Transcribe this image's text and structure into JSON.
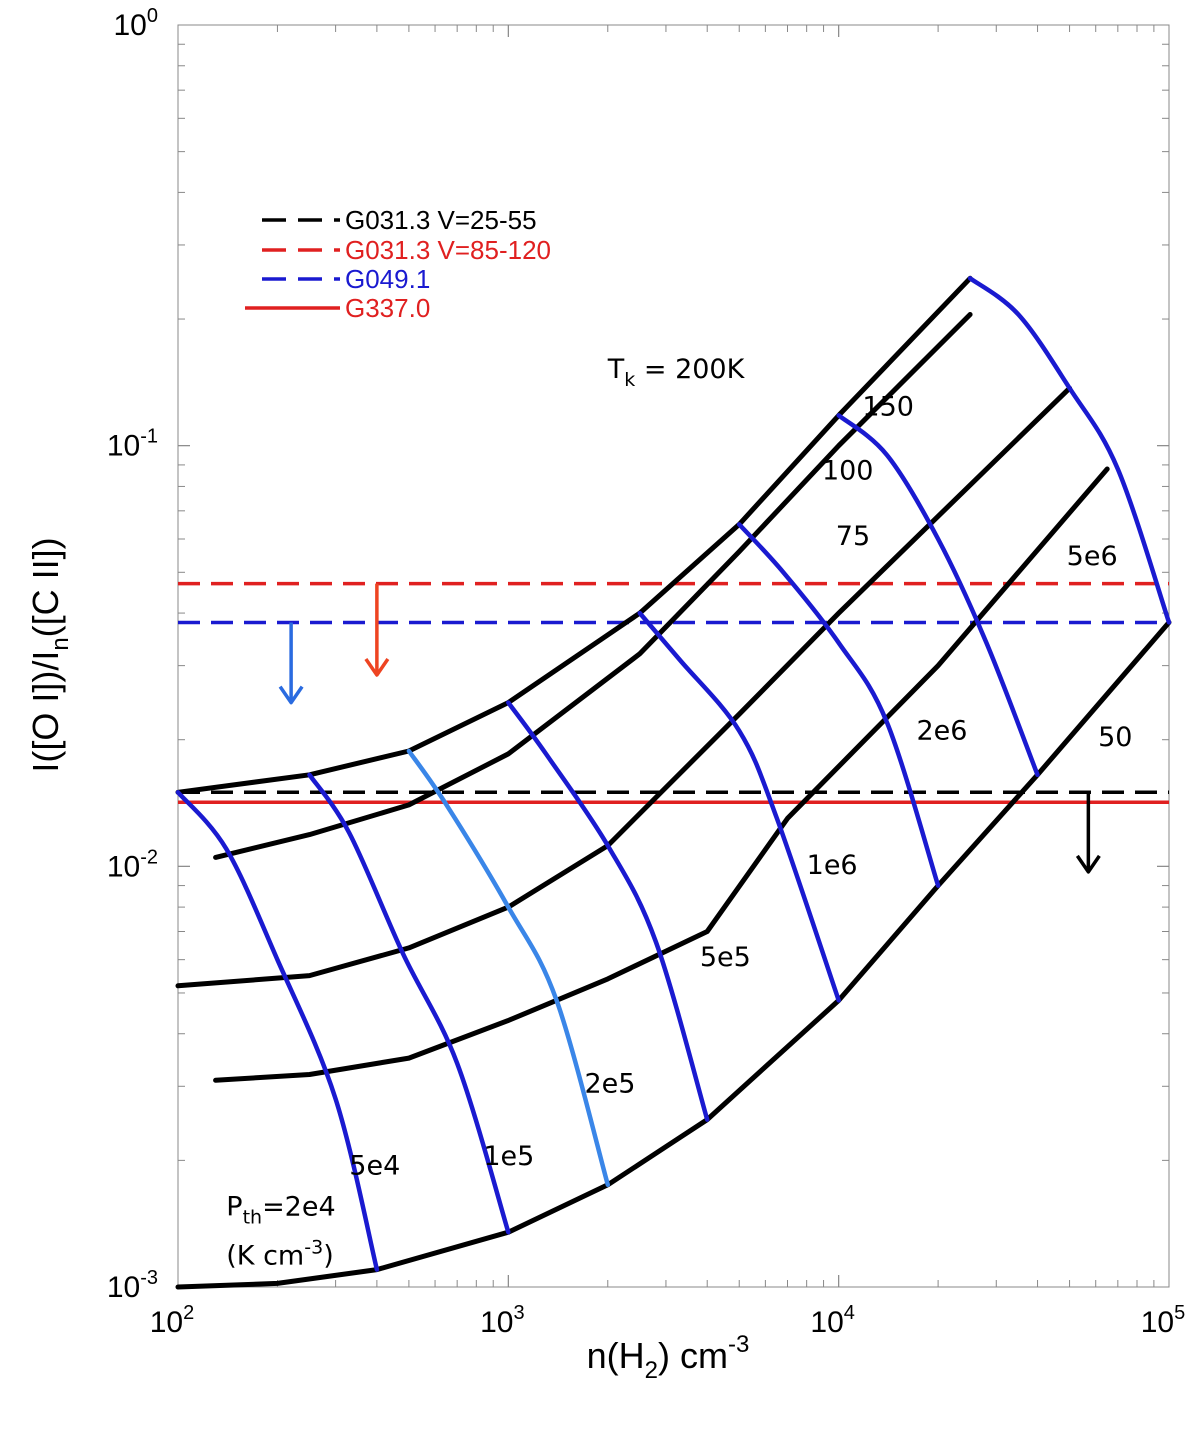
{
  "chart_data": {
    "type": "line",
    "x_scale": "log",
    "y_scale": "log",
    "xlim": [
      100,
      100000
    ],
    "ylim": [
      0.001,
      1
    ],
    "xlabel_parts": [
      "n(H",
      "2",
      ") cm",
      "-3"
    ],
    "ylabel_parts": [
      "I([O I])/I",
      "n",
      "([C II])"
    ],
    "x_ticks": [
      {
        "value": 100,
        "base": "10",
        "exp": "2"
      },
      {
        "value": 1000,
        "base": "10",
        "exp": "3"
      },
      {
        "value": 10000,
        "base": "10",
        "exp": "4"
      },
      {
        "value": 100000,
        "base": "10",
        "exp": "5"
      }
    ],
    "y_ticks": [
      {
        "value": 0.001,
        "base": "10",
        "exp": "-3"
      },
      {
        "value": 0.01,
        "base": "10",
        "exp": "-2"
      },
      {
        "value": 0.1,
        "base": "10",
        "exp": "-1"
      },
      {
        "value": 1,
        "base": "10",
        "exp": "0"
      }
    ],
    "temperature_curves": [
      {
        "label": "200",
        "points": [
          [
            100,
            0.015
          ],
          [
            250,
            0.0165
          ],
          [
            500,
            0.0188
          ],
          [
            1000,
            0.0245
          ],
          [
            2500,
            0.04
          ],
          [
            5000,
            0.065
          ],
          [
            10000,
            0.118
          ],
          [
            25000,
            0.25
          ]
        ]
      },
      {
        "label": "150",
        "points": [
          [
            130,
            0.0105
          ],
          [
            250,
            0.0119
          ],
          [
            500,
            0.014
          ],
          [
            1000,
            0.0185
          ],
          [
            2500,
            0.032
          ],
          [
            5000,
            0.056
          ],
          [
            10000,
            0.1
          ],
          [
            25000,
            0.205
          ]
        ]
      },
      {
        "label": "100",
        "points": [
          [
            100,
            0.0052
          ],
          [
            250,
            0.0055
          ],
          [
            500,
            0.0064
          ],
          [
            1000,
            0.008
          ],
          [
            2000,
            0.0112
          ],
          [
            5000,
            0.023
          ],
          [
            10000,
            0.04
          ],
          [
            50000,
            0.137
          ]
        ]
      },
      {
        "label": "75",
        "points": [
          [
            130,
            0.0031
          ],
          [
            250,
            0.0032
          ],
          [
            500,
            0.0035
          ],
          [
            1000,
            0.0043
          ],
          [
            2000,
            0.0054
          ],
          [
            4000,
            0.007
          ],
          [
            7000,
            0.013
          ],
          [
            20000,
            0.03
          ],
          [
            65000,
            0.088
          ]
        ]
      },
      {
        "label": "50",
        "points": [
          [
            100,
            0.001
          ],
          [
            200,
            0.00102
          ],
          [
            400,
            0.0011
          ],
          [
            1000,
            0.00135
          ],
          [
            2000,
            0.00175
          ],
          [
            4000,
            0.0025
          ],
          [
            10000,
            0.0048
          ],
          [
            20000,
            0.009
          ],
          [
            40000,
            0.0165
          ],
          [
            100000,
            0.038
          ]
        ]
      }
    ],
    "pressure_curves": [
      {
        "label": "2e4",
        "color": "#1a1ad0",
        "points": [
          [
            100,
            0.015
          ],
          [
            140,
            0.011
          ],
          [
            200,
            0.006
          ],
          [
            300,
            0.0028
          ],
          [
            400,
            0.0011
          ]
        ]
      },
      {
        "label": "5e4",
        "color": "#1a1ad0",
        "points": [
          [
            250,
            0.0165
          ],
          [
            330,
            0.012
          ],
          [
            480,
            0.0062
          ],
          [
            700,
            0.0034
          ],
          [
            1000,
            0.00135
          ]
        ]
      },
      {
        "label": "1e5",
        "color": "#3a86e8",
        "points": [
          [
            500,
            0.0188
          ],
          [
            650,
            0.014
          ],
          [
            1000,
            0.008
          ],
          [
            1400,
            0.0048
          ],
          [
            2000,
            0.00175
          ]
        ]
      },
      {
        "label": "2e5",
        "color": "#1a1ad0",
        "points": [
          [
            1000,
            0.0245
          ],
          [
            1300,
            0.0185
          ],
          [
            2000,
            0.0112
          ],
          [
            2800,
            0.0066
          ],
          [
            4000,
            0.0025
          ]
        ]
      },
      {
        "label": "5e5",
        "color": "#1a1ad0",
        "points": [
          [
            2500,
            0.04
          ],
          [
            3300,
            0.031
          ],
          [
            5000,
            0.021
          ],
          [
            6500,
            0.013
          ],
          [
            10000,
            0.0048
          ]
        ]
      },
      {
        "label": "1e6",
        "color": "#1a1ad0",
        "points": [
          [
            5000,
            0.065
          ],
          [
            6800,
            0.05
          ],
          [
            10000,
            0.034
          ],
          [
            14000,
            0.022
          ],
          [
            20000,
            0.009
          ]
        ]
      },
      {
        "label": "2e6",
        "color": "#1a1ad0",
        "points": [
          [
            10000,
            0.118
          ],
          [
            14000,
            0.095
          ],
          [
            20000,
            0.06
          ],
          [
            28000,
            0.034
          ],
          [
            40000,
            0.0165
          ]
        ]
      },
      {
        "label": "5e6",
        "color": "#1a1ad0",
        "points": [
          [
            25000,
            0.25
          ],
          [
            35000,
            0.205
          ],
          [
            50000,
            0.137
          ],
          [
            70000,
            0.088
          ],
          [
            100000,
            0.038
          ]
        ]
      }
    ],
    "observations": [
      {
        "name": "G031.3 V=25-55",
        "value": 0.015,
        "color": "#000000",
        "style": "dashed",
        "legend_color": "#000000"
      },
      {
        "name": "G031.3 V=85-120",
        "value": 0.047,
        "color": "#e02020",
        "style": "dashed",
        "legend_color": "#e02020"
      },
      {
        "name": "G049.1",
        "value": 0.038,
        "color": "#1a1ad0",
        "style": "dashed",
        "legend_color": "#1a1ad0"
      },
      {
        "name": "G337.0",
        "value": 0.0142,
        "color": "#e02020",
        "style": "solid",
        "legend_color": "#e02020"
      }
    ],
    "upper_limit_arrows": [
      {
        "x": 220,
        "y_from": 0.038,
        "y_to": 0.0245,
        "color": "#2a6be0"
      },
      {
        "x": 400,
        "y_from": 0.047,
        "y_to": 0.0285,
        "color": "#ee4422"
      },
      {
        "x": 57000,
        "y_from": 0.015,
        "y_to": 0.0097,
        "color": "#000000"
      }
    ],
    "annotations": {
      "tk": {
        "text": "T",
        "sub": "k",
        "rest": " = 200K",
        "x": 2000,
        "y": 0.145
      },
      "t150": {
        "text": "150",
        "x": 11800,
        "y": 0.118
      },
      "t100": {
        "text": "100",
        "x": 8900,
        "y": 0.083
      },
      "t75": {
        "text": "75",
        "x": 9800,
        "y": 0.058
      },
      "t50": {
        "text": "50",
        "x": 61000,
        "y": 0.0193
      },
      "p5e6": {
        "text": "5e6",
        "x": 49000,
        "y": 0.052
      },
      "p2e6": {
        "text": "2e6",
        "x": 17200,
        "y": 0.02
      },
      "p1e6": {
        "text": "1e6",
        "x": 8000,
        "y": 0.0096
      },
      "p5e5": {
        "text": "5e5",
        "x": 3800,
        "y": 0.0058
      },
      "p2e5": {
        "text": "2e5",
        "x": 1700,
        "y": 0.0029
      },
      "p1e5": {
        "text": "1e5",
        "x": 840,
        "y": 0.00195
      },
      "p5e4": {
        "text": "5e4",
        "x": 330,
        "y": 0.00185
      },
      "pth1": {
        "text": "P",
        "sub": "th",
        "rest": "=2e4",
        "x": 140,
        "y": 0.00148
      },
      "pth2": {
        "text": "(K cm",
        "sup": "-3",
        "rest": ")",
        "x": 140,
        "y": 0.00113
      }
    }
  }
}
